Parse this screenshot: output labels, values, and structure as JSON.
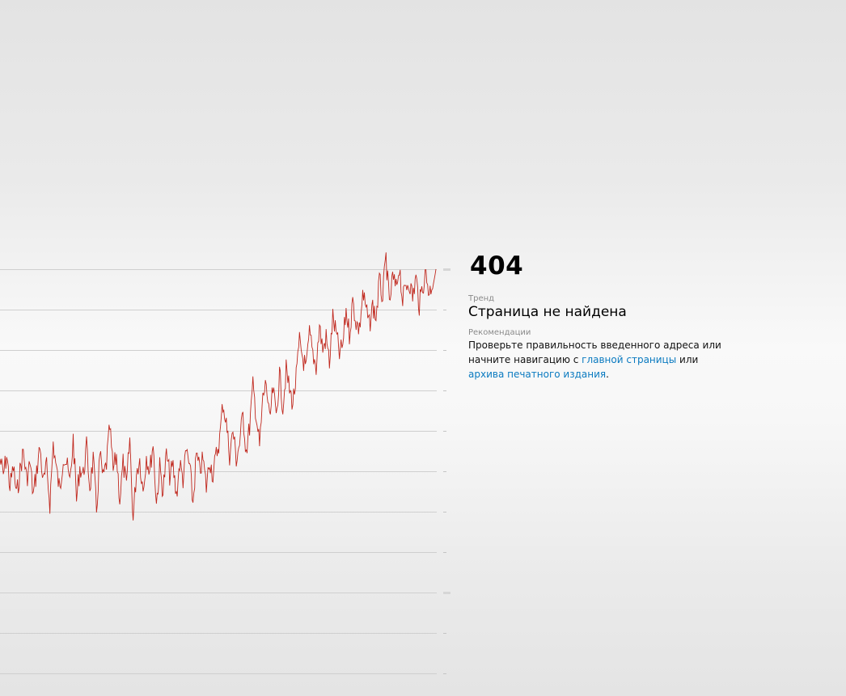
{
  "error": {
    "code": "404",
    "trend_label": "Тренд",
    "trend_value": "Страница не найдена",
    "recommendations_label": "Рекомендации",
    "text_part1": "Проверьте правильность введенного адреса или начните навигацию с ",
    "link_home": "главной страницы",
    "text_part2": " или ",
    "link_archive": "архива печатного издания",
    "text_part3": "."
  },
  "chart_data": {
    "type": "line",
    "grid": true,
    "series_color": "#c0281e",
    "gridline_count": 11,
    "note": "decorative trend line, no printed axis values; y values are relative levels 0-10 where gridlines are at integer levels (0 = top gridline)",
    "y": [
      4.7,
      5.1,
      4.6,
      5.4,
      4.9,
      5.6,
      5.0,
      4.5,
      5.2,
      4.8,
      5.6,
      5.0,
      4.4,
      5.3,
      4.9,
      5.8,
      4.3,
      5.0,
      5.5,
      4.6,
      4.8,
      5.3,
      4.2,
      5.7,
      4.9,
      5.1,
      4.4,
      5.4,
      4.7,
      6.0,
      4.6,
      5.2,
      4.8,
      3.9,
      5.0,
      4.6,
      5.7,
      4.8,
      5.4,
      4.2,
      6.2,
      5.0,
      4.7,
      5.5,
      4.6,
      5.0,
      4.3,
      5.8,
      4.9,
      5.5,
      4.6,
      5.1,
      4.9,
      5.6,
      4.8,
      5.2,
      4.5,
      4.9,
      5.8,
      4.6,
      5.0,
      4.7,
      5.4,
      4.7,
      5.1,
      4.6,
      4.2,
      3.3,
      3.8,
      4.6,
      4.0,
      4.7,
      4.3,
      3.6,
      4.5,
      3.9,
      2.9,
      3.6,
      4.4,
      3.2,
      2.8,
      3.8,
      3.0,
      3.6,
      2.6,
      3.4,
      2.5,
      3.0,
      3.3,
      2.7,
      1.8,
      2.2,
      2.5,
      1.6,
      2.1,
      2.4,
      1.4,
      2.0,
      1.7,
      2.3,
      1.2,
      1.6,
      2.1,
      1.9,
      1.0,
      1.6,
      0.8,
      1.3,
      1.5,
      0.6,
      1.0,
      1.4,
      0.9,
      1.2,
      0.3,
      0.7,
      -0.3,
      0.9,
      0.2,
      0.5,
      -0.1,
      0.8,
      0.4,
      0.3,
      0.7,
      0.2,
      0.9,
      0.4,
      0.1,
      0.6,
      0.3,
      0.0
    ]
  }
}
